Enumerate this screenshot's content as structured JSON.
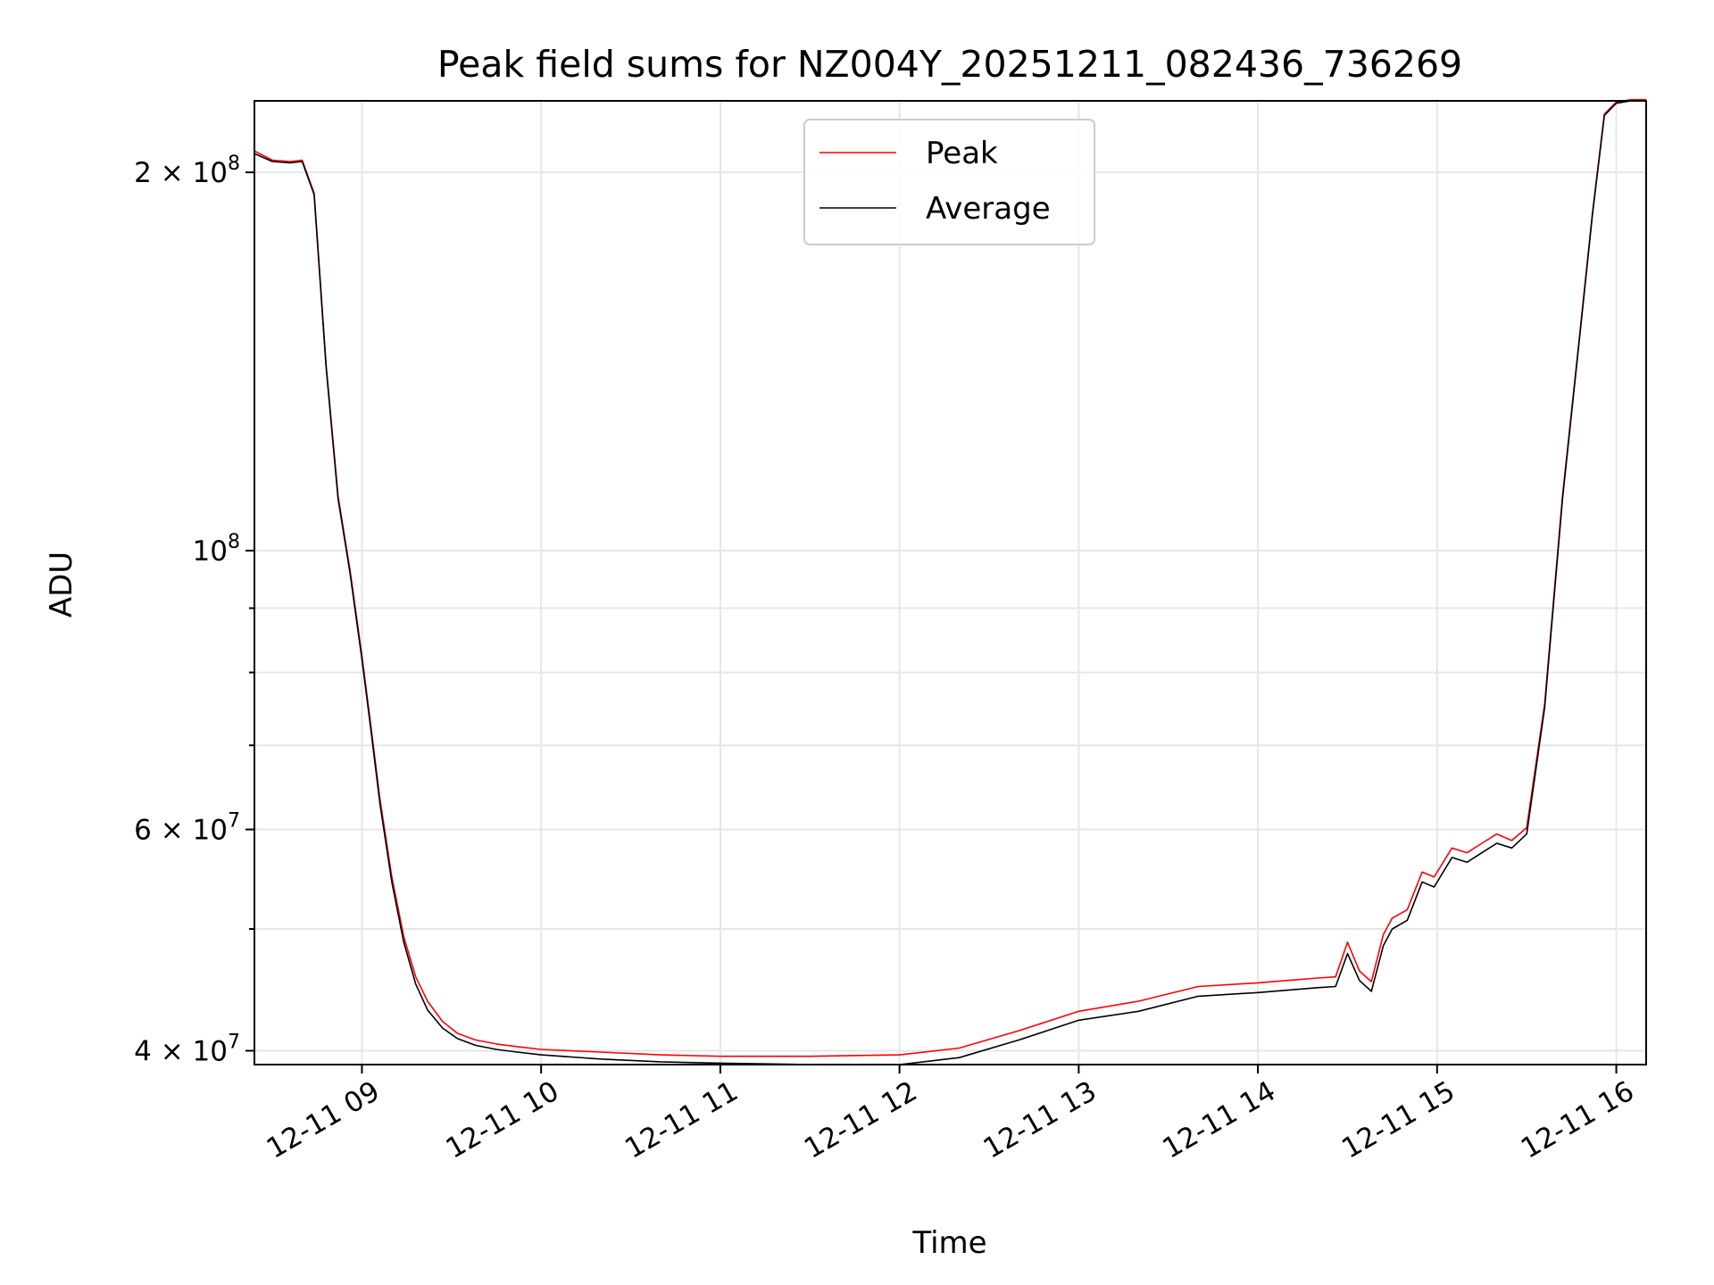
{
  "chart_data": {
    "type": "line",
    "title": "Peak field sums for NZ004Y_20251211_082436_736269",
    "xlabel": "Time",
    "ylabel": "ADU",
    "x_range": [
      "2025-12-11 08:24",
      "2025-12-11 16:10"
    ],
    "y_scale": "log",
    "ylim": [
      39000000,
      228000000
    ],
    "grid": true,
    "legend_position": "top-center",
    "x_ticks": [
      {
        "label": "12-11 09",
        "value": "2025-12-11 09:00"
      },
      {
        "label": "12-11 10",
        "value": "2025-12-11 10:00"
      },
      {
        "label": "12-11 11",
        "value": "2025-12-11 11:00"
      },
      {
        "label": "12-11 12",
        "value": "2025-12-11 12:00"
      },
      {
        "label": "12-11 13",
        "value": "2025-12-11 13:00"
      },
      {
        "label": "12-11 14",
        "value": "2025-12-11 14:00"
      },
      {
        "label": "12-11 15",
        "value": "2025-12-11 15:00"
      },
      {
        "label": "12-11 16",
        "value": "2025-12-11 16:00"
      }
    ],
    "y_major_ticks": [
      {
        "value": 40000000,
        "mant": "4 × 10",
        "exp": "7"
      },
      {
        "value": 60000000,
        "mant": "6 × 10",
        "exp": "7"
      },
      {
        "value": 100000000,
        "mant": "10",
        "exp": "8"
      },
      {
        "value": 200000000,
        "mant": "2 × 10",
        "exp": "8"
      }
    ],
    "y_minor_ticks": [
      50000000,
      70000000,
      80000000,
      90000000
    ],
    "x": [
      "2025-12-11 08:24",
      "2025-12-11 08:30",
      "2025-12-11 08:36",
      "2025-12-11 08:40",
      "2025-12-11 08:44",
      "2025-12-11 08:48",
      "2025-12-11 08:52",
      "2025-12-11 08:56",
      "2025-12-11 09:00",
      "2025-12-11 09:03",
      "2025-12-11 09:06",
      "2025-12-11 09:10",
      "2025-12-11 09:14",
      "2025-12-11 09:18",
      "2025-12-11 09:22",
      "2025-12-11 09:27",
      "2025-12-11 09:32",
      "2025-12-11 09:38",
      "2025-12-11 09:45",
      "2025-12-11 09:52",
      "2025-12-11 10:00",
      "2025-12-11 10:20",
      "2025-12-11 10:40",
      "2025-12-11 11:00",
      "2025-12-11 11:30",
      "2025-12-11 12:00",
      "2025-12-11 12:20",
      "2025-12-11 12:40",
      "2025-12-11 13:00",
      "2025-12-11 13:20",
      "2025-12-11 13:40",
      "2025-12-11 14:00",
      "2025-12-11 14:10",
      "2025-12-11 14:20",
      "2025-12-11 14:26",
      "2025-12-11 14:30",
      "2025-12-11 14:34",
      "2025-12-11 14:38",
      "2025-12-11 14:42",
      "2025-12-11 14:45",
      "2025-12-11 14:50",
      "2025-12-11 14:55",
      "2025-12-11 14:59",
      "2025-12-11 15:05",
      "2025-12-11 15:10",
      "2025-12-11 15:15",
      "2025-12-11 15:20",
      "2025-12-11 15:25",
      "2025-12-11 15:30",
      "2025-12-11 15:36",
      "2025-12-11 15:42",
      "2025-12-11 15:48",
      "2025-12-11 15:52",
      "2025-12-11 15:56",
      "2025-12-11 16:00",
      "2025-12-11 16:05",
      "2025-12-11 16:10"
    ],
    "series": [
      {
        "name": "Average",
        "color": "#000000",
        "values": [
          207000000,
          204000000,
          203500000,
          204000000,
          192000000,
          140000000,
          110000000,
          96000000,
          82000000,
          72000000,
          63000000,
          54500000,
          48800000,
          45200000,
          43100000,
          41700000,
          40900000,
          40400000,
          40100000,
          39900000,
          39700000,
          39400000,
          39200000,
          39100000,
          39000000,
          39000000,
          39500000,
          40800000,
          42300000,
          43000000,
          44200000,
          44500000,
          44700000,
          44900000,
          45000000,
          47800000,
          45500000,
          44600000,
          48500000,
          50000000,
          50800000,
          54500000,
          54000000,
          57000000,
          56500000,
          57500000,
          58500000,
          58000000,
          59500000,
          75000000,
          110000000,
          150000000,
          185000000,
          222000000,
          227000000,
          228000000,
          228000000
        ]
      },
      {
        "name": "Peak",
        "color": "#ff0000",
        "values": [
          208000000,
          204500000,
          204000000,
          204500000,
          192500000,
          140500000,
          110500000,
          96500000,
          82500000,
          72500000,
          63500000,
          55000000,
          49300000,
          45800000,
          43800000,
          42200000,
          41300000,
          40800000,
          40500000,
          40300000,
          40100000,
          39900000,
          39700000,
          39600000,
          39600000,
          39700000,
          40200000,
          41500000,
          43000000,
          43800000,
          45000000,
          45300000,
          45500000,
          45700000,
          45800000,
          48800000,
          46300000,
          45400000,
          49500000,
          51000000,
          51800000,
          55500000,
          55000000,
          58000000,
          57500000,
          58500000,
          59500000,
          58800000,
          60200000,
          75500000,
          110500000,
          150500000,
          185500000,
          222500000,
          227500000,
          228500000,
          228500000
        ]
      }
    ]
  }
}
